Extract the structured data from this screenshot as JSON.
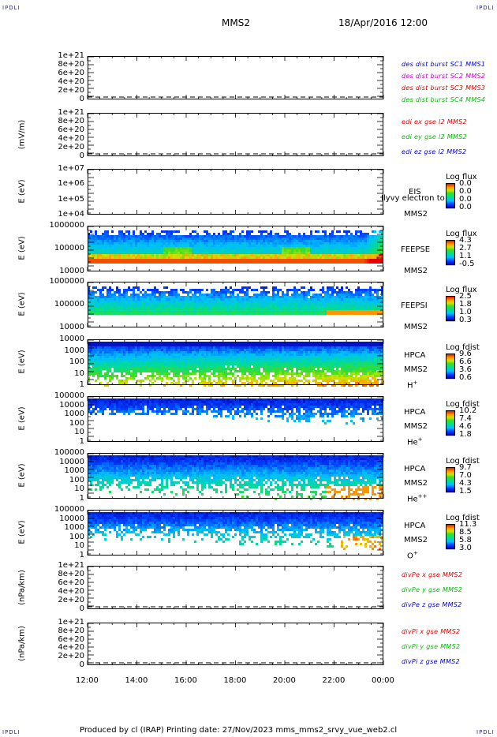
{
  "header": {
    "corner_left_top": "IPDLI",
    "corner_right_top": "IPDLI",
    "corner_left_bottom": "IPDLI",
    "corner_right_bottom": "IPDLI",
    "spacecraft": "MMS2",
    "datetime": "18/Apr/2016 12:00"
  },
  "footer": {
    "text": "Produced by cl (IRAP)    Printing date: 27/Nov/2023    mms_mms2_srvy_vue_web2.cl"
  },
  "colors": {
    "blue": "#0000cc",
    "magenta": "#cc00cc",
    "red": "#dd0000",
    "green": "#00bb00"
  },
  "chart_data": [
    {
      "type": "line",
      "id": "des-dist",
      "ylabel": "",
      "yticks": [
        "1e+21",
        "8e+20",
        "6e+20",
        "4e+20",
        "2e+20",
        "0"
      ],
      "legend": [
        {
          "text": "des dist burst SC1 MMS1",
          "color": "#0000cc"
        },
        {
          "text": "des dist burst SC2 MMS2",
          "color": "#cc00cc"
        },
        {
          "text": "des dist burst SC3 MMS3",
          "color": "#dd0000"
        },
        {
          "text": "des dist burst SC4 MMS4",
          "color": "#00bb00"
        }
      ]
    },
    {
      "type": "line",
      "id": "edi",
      "ylabel": "(mV/m)",
      "yticks": [
        "1e+21",
        "8e+20",
        "6e+20",
        "4e+20",
        "2e+20",
        "0"
      ],
      "legend": [
        {
          "text": "edi ex gse l2 MMS2",
          "color": "#dd0000"
        },
        {
          "text": "edi ey gse l2 MMS2",
          "color": "#00bb00"
        },
        {
          "text": "edi ez gse l2 MMS2",
          "color": "#0000cc"
        }
      ]
    },
    {
      "type": "heatmap",
      "id": "eis",
      "ylabel": "E (eV)",
      "yticks": [
        "1e+07",
        "1e+06",
        "1e+05",
        "1e+04"
      ],
      "side": [
        "EIS",
        "MMS2"
      ],
      "overlay": "Ilyvy electron to",
      "colorbar_title": "Log flux",
      "colorbar_values": [
        "0.0",
        "0.0",
        "0.0",
        "0.0"
      ]
    },
    {
      "type": "heatmap",
      "id": "feepse",
      "ylabel": "E (eV)",
      "yticks": [
        "1000000",
        "100000",
        "10000"
      ],
      "side": [
        "FEEPSE",
        "MMS2"
      ],
      "colorbar_title": "Log flux",
      "colorbar_values": [
        "4.3",
        "2.7",
        "1.1",
        "-0.5"
      ]
    },
    {
      "type": "heatmap",
      "id": "feepsi",
      "ylabel": "E (eV)",
      "yticks": [
        "1000000",
        "100000",
        "10000"
      ],
      "side": [
        "FEEPSI",
        "MMS2"
      ],
      "colorbar_title": "Log flux",
      "colorbar_values": [
        "2.5",
        "1.8",
        "1.0",
        "0.3"
      ]
    },
    {
      "type": "heatmap",
      "id": "hpca-h",
      "ylabel": "E (eV)",
      "yticks": [
        "10000",
        "1000",
        "100",
        "10",
        "1"
      ],
      "side": [
        "HPCA",
        "MMS2"
      ],
      "species": "H",
      "species_sup": "+",
      "colorbar_title": "Log fdist",
      "colorbar_values": [
        "9.6",
        "6.6",
        "3.6",
        "0.6"
      ]
    },
    {
      "type": "heatmap",
      "id": "hpca-he",
      "ylabel": "E (eV)",
      "yticks": [
        "100000",
        "10000",
        "1000",
        "100",
        "10",
        "1"
      ],
      "side": [
        "HPCA",
        "MMS2"
      ],
      "species": "He",
      "species_sup": "+",
      "colorbar_title": "Log fdist",
      "colorbar_values": [
        "10.2",
        "7.4",
        "4.6",
        "1.8"
      ]
    },
    {
      "type": "heatmap",
      "id": "hpca-hepp",
      "ylabel": "E (eV)",
      "yticks": [
        "100000",
        "10000",
        "1000",
        "100",
        "10",
        "1"
      ],
      "side": [
        "HPCA",
        "MMS2"
      ],
      "species": "He",
      "species_sup": "++",
      "colorbar_title": "Log fdist",
      "colorbar_values": [
        "9.7",
        "7.0",
        "4.3",
        "1.5"
      ]
    },
    {
      "type": "heatmap",
      "id": "hpca-o",
      "ylabel": "E (eV)",
      "yticks": [
        "100000",
        "10000",
        "1000",
        "100",
        "10",
        "1"
      ],
      "side": [
        "HPCA",
        "MMS2"
      ],
      "species": "O",
      "species_sup": "+",
      "colorbar_title": "Log fdist",
      "colorbar_values": [
        "11.3",
        "8.5",
        "5.8",
        "3.0"
      ]
    },
    {
      "type": "line",
      "id": "divpe",
      "ylabel": "(nPa/km)",
      "yticks": [
        "1e+21",
        "8e+20",
        "6e+20",
        "4e+20",
        "2e+20",
        "0"
      ],
      "legend": [
        {
          "text": "divPe x gse MMS2",
          "color": "#dd0000"
        },
        {
          "text": "divPe y gse MMS2",
          "color": "#00bb00"
        },
        {
          "text": "divPe z gse MMS2",
          "color": "#0000cc"
        }
      ]
    },
    {
      "type": "line",
      "id": "divpi",
      "ylabel": "(nPa/km)",
      "yticks": [
        "1e+21",
        "8e+20",
        "6e+20",
        "4e+20",
        "2e+20",
        "0"
      ],
      "legend": [
        {
          "text": "divPi x gse MMS2",
          "color": "#dd0000"
        },
        {
          "text": "divPi y gse MMS2",
          "color": "#00bb00"
        },
        {
          "text": "divPi z gse MMS2",
          "color": "#0000cc"
        }
      ]
    }
  ],
  "xaxis": {
    "ticks": [
      "12:00",
      "14:00",
      "16:00",
      "18:00",
      "20:00",
      "22:00",
      "00:00"
    ]
  }
}
